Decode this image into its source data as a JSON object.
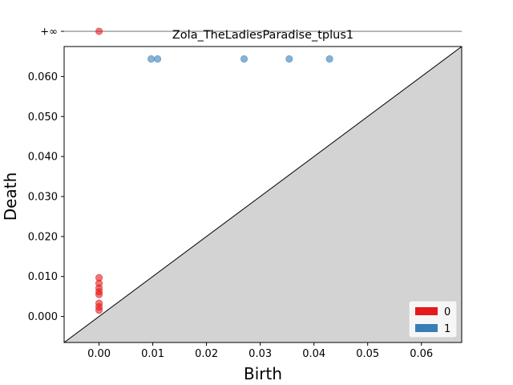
{
  "chart_data": {
    "type": "scatter",
    "title": "Zola_TheLadiesParadise_tplus1",
    "xlabel": "Birth",
    "ylabel": "Death",
    "xlim": [
      -0.0065,
      0.0675
    ],
    "ylim": [
      -0.0065,
      0.0675
    ],
    "x_ticks": [
      0.0,
      0.01,
      0.02,
      0.03,
      0.04,
      0.05,
      0.06
    ],
    "x_tick_labels": [
      "0.00",
      "0.01",
      "0.02",
      "0.03",
      "0.04",
      "0.05",
      "0.06"
    ],
    "y_ticks": [
      0.0,
      0.01,
      0.02,
      0.03,
      0.04,
      0.05,
      0.06
    ],
    "y_tick_labels": [
      "0.000",
      "0.010",
      "0.020",
      "0.030",
      "0.040",
      "0.050",
      "0.060"
    ],
    "infinity_label": "+∞",
    "infinity_value": 0.0713,
    "diagonal": true,
    "grid": false,
    "legend_position": "lower-right",
    "series": [
      {
        "name": "0",
        "color": "#e41a1c",
        "points": [
          {
            "x": 0.0,
            "y": "inf"
          },
          {
            "x": 0.0,
            "y": 0.0097
          },
          {
            "x": 0.0,
            "y": 0.0083
          },
          {
            "x": 0.0,
            "y": 0.0071
          },
          {
            "x": 0.0,
            "y": 0.0062
          },
          {
            "x": 0.0,
            "y": 0.0055
          },
          {
            "x": 0.0,
            "y": 0.0033
          },
          {
            "x": 0.0,
            "y": 0.0024
          },
          {
            "x": 0.0,
            "y": 0.0016
          }
        ]
      },
      {
        "name": "1",
        "color": "#377eb8",
        "points": [
          {
            "x": 0.0097,
            "y": 0.0644
          },
          {
            "x": 0.0109,
            "y": 0.0644
          },
          {
            "x": 0.027,
            "y": 0.0644
          },
          {
            "x": 0.0354,
            "y": 0.0644
          },
          {
            "x": 0.0429,
            "y": 0.0644
          }
        ]
      }
    ]
  }
}
